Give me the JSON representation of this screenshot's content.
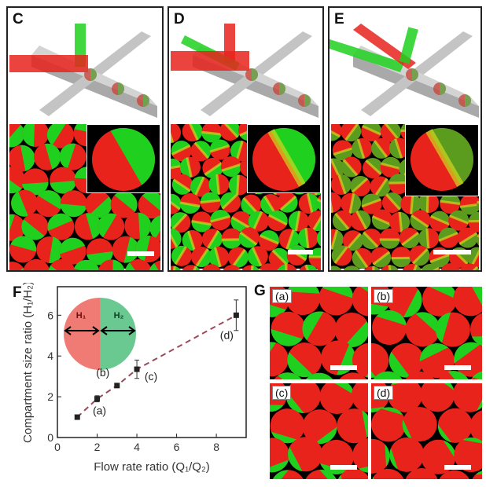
{
  "panels": {
    "C": "C",
    "D": "D",
    "E": "E",
    "F": "F",
    "G": "G"
  },
  "sub_panels": [
    "(a)",
    "(b)",
    "(c)",
    "(d)"
  ],
  "colors": {
    "red": "#e8231c",
    "green": "#1fd01f",
    "channel": "#bdbdbd",
    "trend": "#9b4a5a"
  },
  "inset_diagram": {
    "h1": "H₁",
    "h2": "H₂",
    "left_color": "#f07b74",
    "right_color": "#69c990"
  },
  "chart_data": {
    "type": "scatter",
    "xlabel": "Flow rate ratio (Q₁/Q₂)",
    "ylabel": "Compartment size ratio (H₁/H₂)",
    "xlim": [
      0,
      9.5
    ],
    "ylim": [
      0,
      7.4
    ],
    "xticks": [
      "0",
      "2",
      "4",
      "6",
      "8"
    ],
    "yticks": [
      "0",
      "2",
      "4",
      "6"
    ],
    "points": [
      {
        "x": 1,
        "y": 1.0,
        "err": 0.05,
        "label": ""
      },
      {
        "x": 2,
        "y": 1.9,
        "err": 0.15,
        "label": "(a)"
      },
      {
        "x": 3,
        "y": 2.55,
        "err": 0.05,
        "label": "(b)"
      },
      {
        "x": 4,
        "y": 3.35,
        "err": 0.45,
        "label": "(c)"
      },
      {
        "x": 9,
        "y": 6.0,
        "err": 0.75,
        "label": "(d)"
      }
    ],
    "trendline": "dashed"
  }
}
